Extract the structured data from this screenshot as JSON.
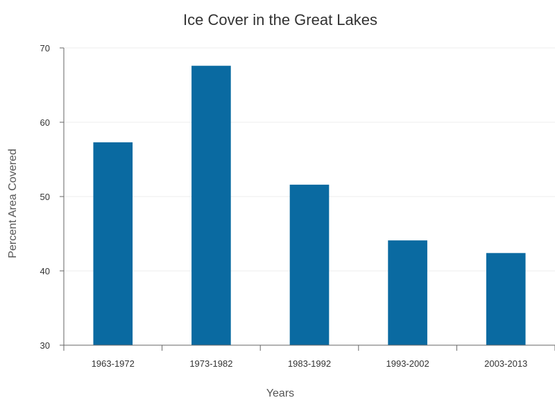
{
  "chart_data": {
    "type": "bar",
    "title": "Ice Cover in the Great Lakes",
    "xlabel": "Years",
    "ylabel": "Percent Area Covered",
    "categories": [
      "1963-1972",
      "1973-1982",
      "1983-1992",
      "1993-2002",
      "2003-2013"
    ],
    "values": [
      57.3,
      67.6,
      51.6,
      44.1,
      42.4
    ],
    "ylim": [
      30,
      70
    ],
    "yticks": [
      30,
      40,
      50,
      60,
      70
    ],
    "grid": true,
    "legend": "none",
    "bar_color": "#0a6aa1"
  }
}
